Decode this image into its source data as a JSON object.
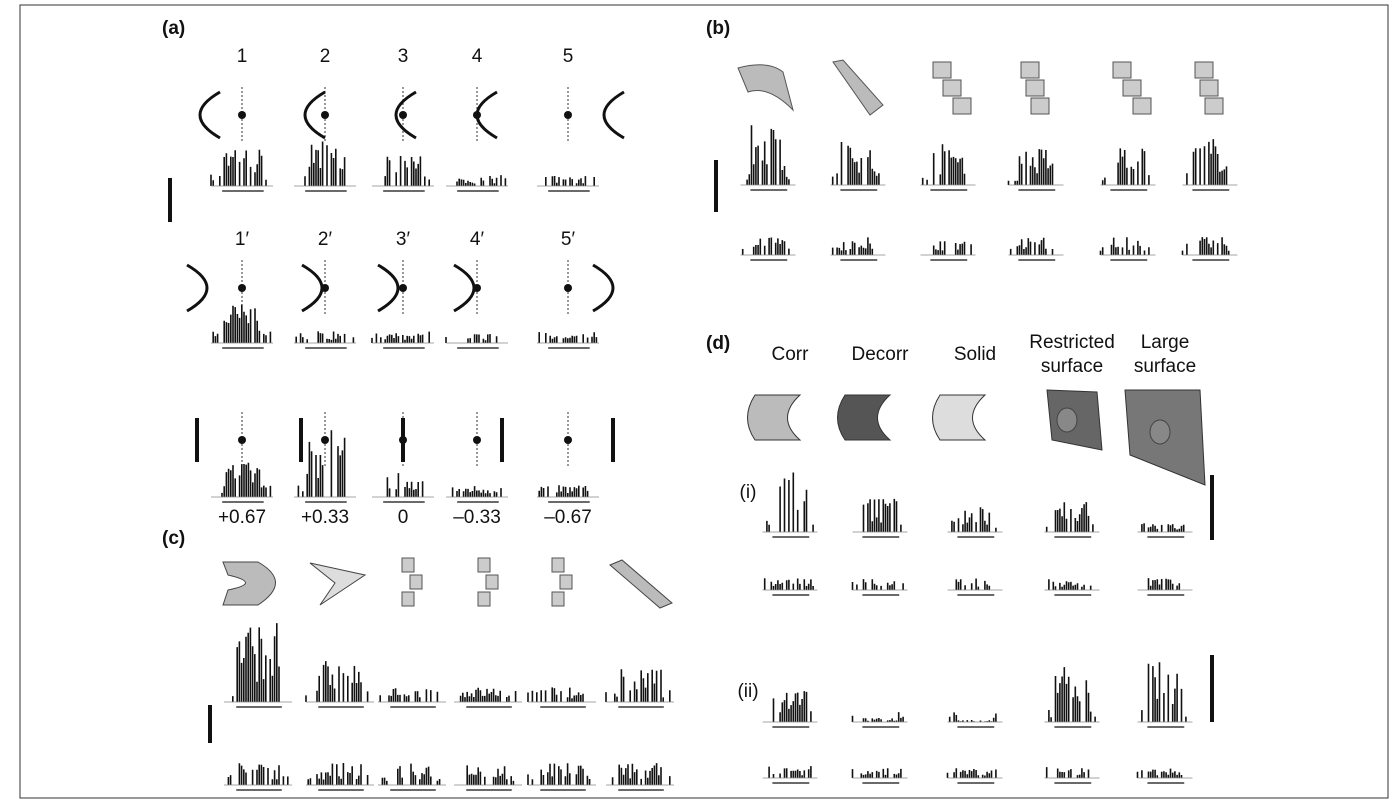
{
  "panels": {
    "a": {
      "label": "(a)",
      "row1": [
        "1",
        "2",
        "3",
        "4",
        "5"
      ],
      "row2": [
        "1′",
        "2′",
        "3′",
        "4′",
        "5′"
      ],
      "disparities": [
        "+0.67",
        "+0.33",
        "0",
        "–0.33",
        "–0.67"
      ]
    },
    "b": {
      "label": "(b)"
    },
    "c": {
      "label": "(c)"
    },
    "d": {
      "label": "(d)",
      "columns": [
        "Corr",
        "Decorr",
        "Solid",
        "Restricted surface",
        "Large surface"
      ],
      "rows": [
        "(i)",
        "(ii)"
      ]
    }
  }
}
